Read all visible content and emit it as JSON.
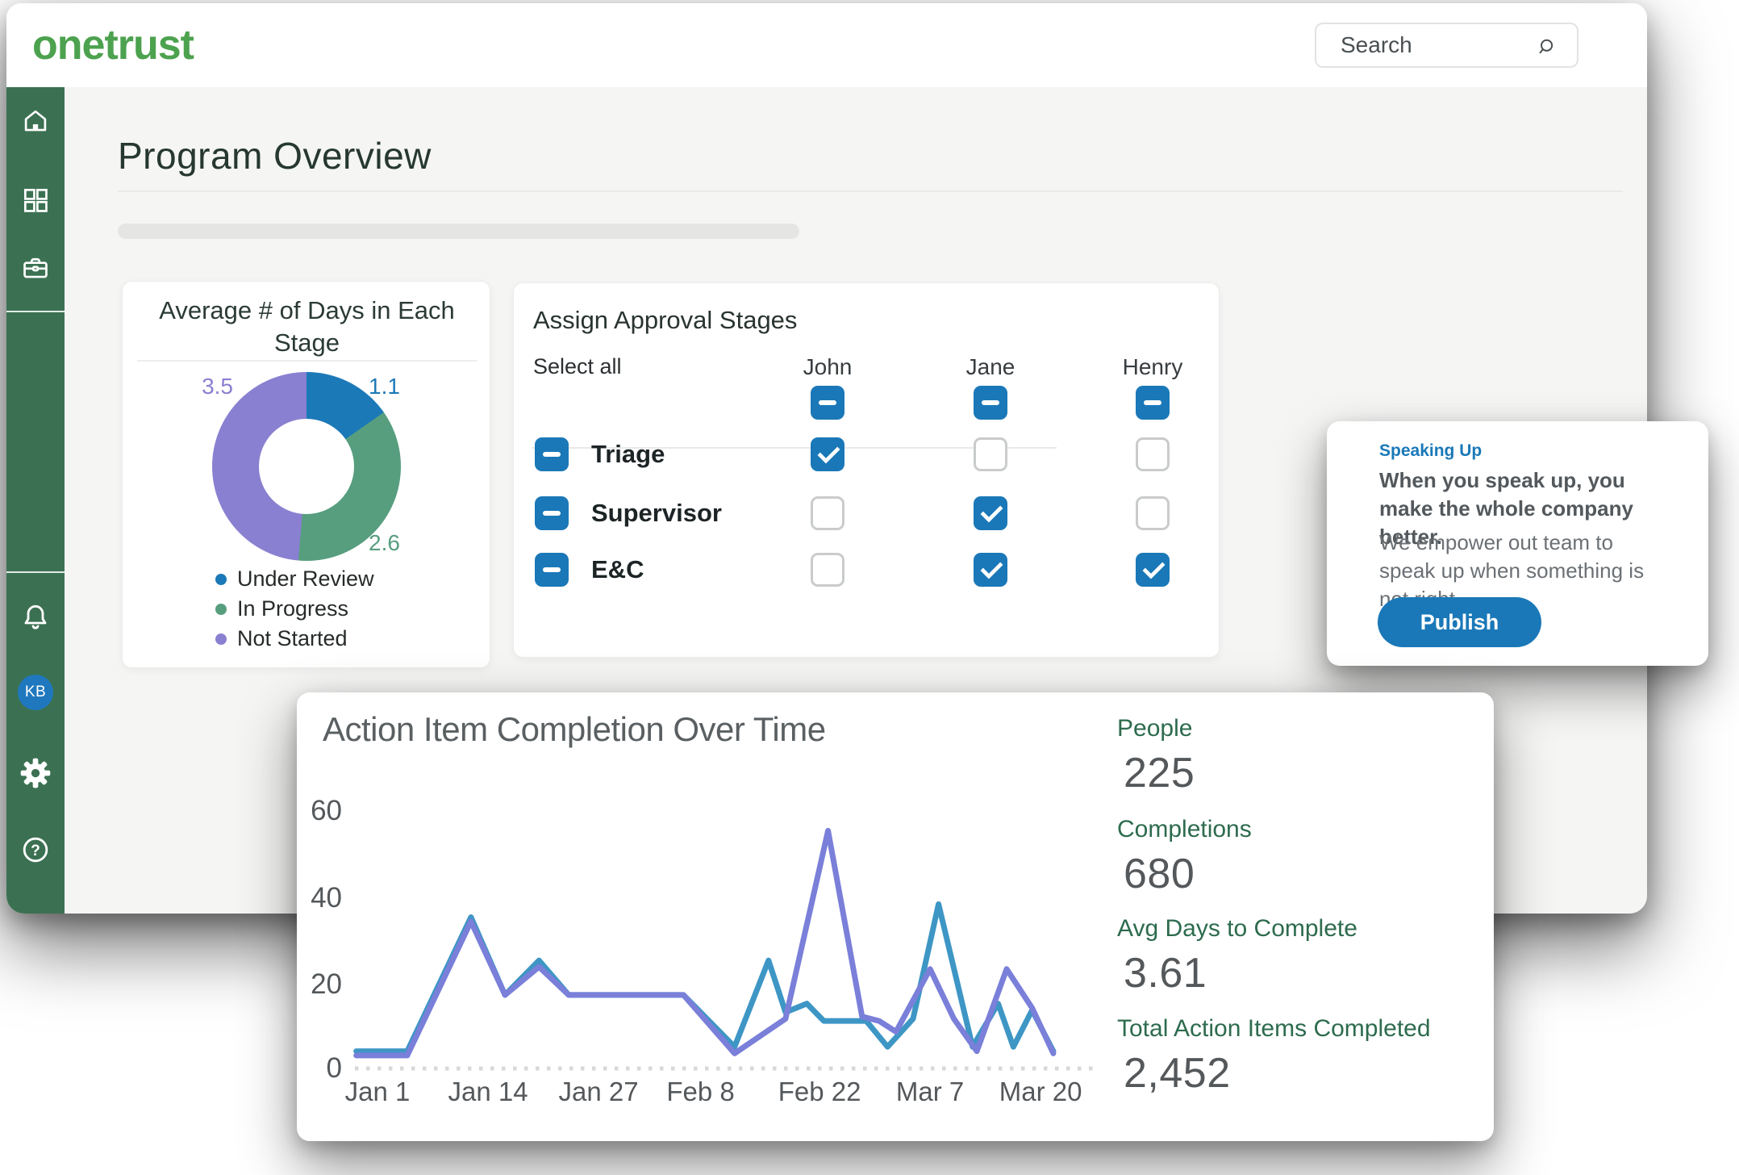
{
  "colors": {
    "brand-green": "#4CA24E",
    "sidebar-green": "#3B7152",
    "accent-blue": "#1A78B8",
    "content-bg": "#F5F5F4",
    "page-title": "#26382F",
    "card-title": "#2B3B34",
    "chart-title-gray": "#5A5F62",
    "stat-label-green": "#2D6B4E",
    "stat-value-gray": "#54585B"
  },
  "topbar": {
    "logo": "onetrust",
    "search_placeholder": "Search"
  },
  "sidebar": {
    "avatar_initials": "KB",
    "items": [
      "home",
      "apps",
      "workspace",
      "notifications",
      "profile",
      "settings",
      "help"
    ]
  },
  "page": {
    "title": "Program Overview"
  },
  "assign_card": {
    "title": "Assign Approval Stages",
    "select_all_label": "Select all",
    "members": [
      "John",
      "Jane",
      "Henry"
    ],
    "header_states": [
      "indeterminate",
      "indeterminate",
      "indeterminate"
    ],
    "rows": [
      {
        "label": "Triage",
        "select_state": "indeterminate",
        "cells": [
          "checked",
          "unchecked",
          "unchecked"
        ]
      },
      {
        "label": "Supervisor",
        "select_state": "indeterminate",
        "cells": [
          "unchecked",
          "checked",
          "unchecked"
        ]
      },
      {
        "label": "E&C",
        "select_state": "indeterminate",
        "cells": [
          "unchecked",
          "checked",
          "checked"
        ]
      }
    ]
  },
  "speaking_card": {
    "eyebrow": "Speaking Up",
    "heading": "When you speak up, you make the whole company better.",
    "body": "We empower out team to speak up when something is not right.",
    "button_label": "Publish"
  },
  "completion_stats": [
    {
      "label": "People",
      "value": "225"
    },
    {
      "label": "Completions",
      "value": "680"
    },
    {
      "label": "Avg Days to Complete",
      "value": "3.61"
    },
    {
      "label": "Total Action Items Completed",
      "value": "2,452"
    }
  ],
  "chart_data": [
    {
      "type": "pie",
      "donut": true,
      "title": "Average # of Days in Each Stage",
      "labels": [
        "Under Review",
        "In Progress",
        "Not Started"
      ],
      "values": [
        1.1,
        2.6,
        3.5
      ],
      "colors": [
        "#1C79B8",
        "#579E7E",
        "#8A80D1"
      ],
      "legend_position": "bottom-left",
      "start_angle_deg": 0,
      "direction": "clockwise"
    },
    {
      "type": "line",
      "title": "Action Item Completion Over Time",
      "x_ticks": [
        "Jan 1",
        "Jan 14",
        "Jan 27",
        "Feb 8",
        "Feb 22",
        "Mar 7",
        "Mar 20"
      ],
      "x_tick_days": [
        0,
        13,
        26,
        38,
        52,
        65,
        78
      ],
      "y_ticks": [
        0,
        20,
        40,
        60
      ],
      "ylim": [
        0,
        60
      ],
      "grid": "dotted-zero-baseline",
      "series": [
        {
          "name": "series-teal",
          "color": "#3E96C5",
          "points": [
            [
              -2.5,
              4
            ],
            [
              3.5,
              4
            ],
            [
              11,
              35
            ],
            [
              15,
              17
            ],
            [
              19,
              25
            ],
            [
              22.5,
              17
            ],
            [
              36,
              17
            ],
            [
              42,
              5
            ],
            [
              46,
              25
            ],
            [
              48,
              13
            ],
            [
              50.5,
              15
            ],
            [
              52.5,
              11
            ],
            [
              57.5,
              11
            ],
            [
              60,
              5
            ],
            [
              63,
              11.5
            ],
            [
              66,
              38
            ],
            [
              70,
              5
            ],
            [
              73,
              15
            ],
            [
              74.8,
              5
            ],
            [
              77,
              13.5
            ],
            [
              79.5,
              4
            ]
          ]
        },
        {
          "name": "series-purple",
          "color": "#7A7FD9",
          "points": [
            [
              -2.5,
              3
            ],
            [
              3.5,
              3
            ],
            [
              11,
              34
            ],
            [
              15,
              17
            ],
            [
              19,
              23.5
            ],
            [
              22.5,
              17
            ],
            [
              36,
              17
            ],
            [
              42,
              3.5
            ],
            [
              48,
              11.5
            ],
            [
              53,
              55
            ],
            [
              57,
              12
            ],
            [
              59,
              11
            ],
            [
              61,
              8.5
            ],
            [
              65,
              23
            ],
            [
              67.8,
              11.5
            ],
            [
              70.5,
              4
            ],
            [
              74,
              23
            ],
            [
              77,
              14
            ],
            [
              79.5,
              3.5
            ]
          ]
        }
      ]
    }
  ]
}
